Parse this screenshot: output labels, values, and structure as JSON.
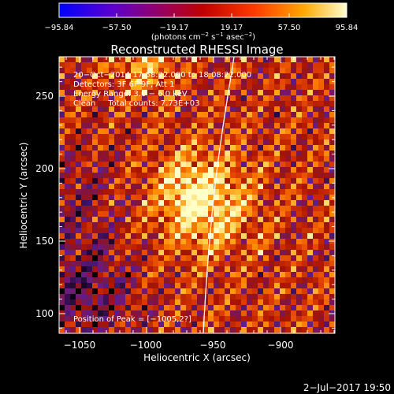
{
  "colorbar": {
    "ticks": [
      "−95.84",
      "−57.50",
      "−19.17",
      "19.17",
      "57.50",
      "95.84"
    ],
    "units_main": "(photons cm",
    "units_exp1": "−2",
    "units_mid1": " s",
    "units_exp2": "−1",
    "units_mid2": " asec",
    "units_exp3": "−2",
    "units_end": ")"
  },
  "plot": {
    "title": "Reconstructed RHESSI Image",
    "info_lines": [
      "20−Oct−2014 17:58:22.000 to 18:08:22.000",
      "Detectors: 3F 6F 9F, Att 1",
      "Energy Range: 3.0 − 6.0 keV",
      "Clean     Total counts: 7.73E+03"
    ],
    "peak_text": "Position of Peak = [−1005,2?]",
    "xlabel": "Heliocentric X (arcsec)",
    "ylabel": "Heliocentric Y (arcsec)",
    "xticks": [
      "−1050",
      "−1000",
      "−950",
      "−900"
    ],
    "yticks": [
      "250",
      "200",
      "150",
      "100"
    ]
  },
  "footer": {
    "timestamp": "2−Jul−2017 19:50"
  }
}
